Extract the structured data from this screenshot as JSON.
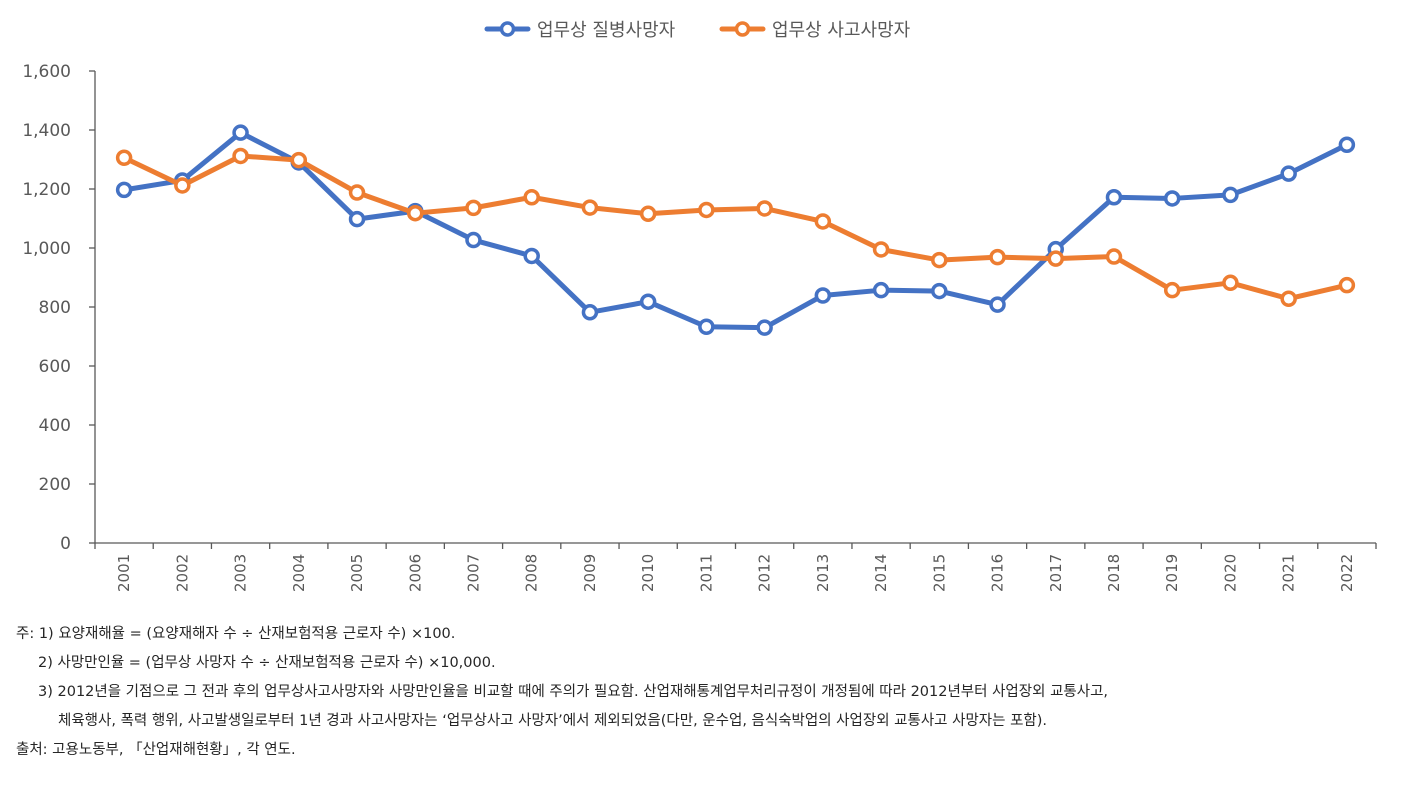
{
  "chart_data": {
    "type": "line",
    "x": [
      "2001",
      "2002",
      "2003",
      "2004",
      "2005",
      "2006",
      "2007",
      "2008",
      "2009",
      "2010",
      "2011",
      "2012",
      "2013",
      "2014",
      "2015",
      "2016",
      "2017",
      "2018",
      "2019",
      "2020",
      "2021",
      "2022"
    ],
    "ylim": [
      0,
      1600
    ],
    "yticks": [
      0,
      200,
      400,
      600,
      800,
      1000,
      1200,
      1400,
      1600
    ],
    "ytick_labels": [
      "0",
      "200",
      "400",
      "600",
      "800",
      "1,000",
      "1,200",
      "1,400",
      "1,600"
    ],
    "grid": false,
    "legend_position": "top-center",
    "series": [
      {
        "name": "업무상 질병사망자",
        "color": "#4472C4",
        "values": [
          1197,
          1229,
          1391,
          1290,
          1098,
          1125,
          1027,
          973,
          782,
          818,
          733,
          730,
          839,
          857,
          854,
          808,
          996,
          1172,
          1168,
          1180,
          1252,
          1350
        ]
      },
      {
        "name": "업무상 사고사망자",
        "color": "#ED7D31",
        "values": [
          1306,
          1212,
          1312,
          1298,
          1188,
          1118,
          1136,
          1172,
          1137,
          1116,
          1129,
          1134,
          1090,
          995,
          959,
          969,
          964,
          971,
          857,
          882,
          828,
          874
        ]
      }
    ]
  },
  "notes": {
    "line1": "주: 1) 요양재해율 = (요양재해자 수 ÷ 산재보험적용 근로자 수) ×100.",
    "line2": "2) 사망만인율 = (업무상 사망자 수 ÷ 산재보험적용 근로자 수) ×10,000.",
    "line3": "3) 2012년을 기점으로 그 전과 후의 업무상사고사망자와 사망만인율을 비교할 때에 주의가 필요함. 산업재해통계업무처리규정이 개정됨에 따라 2012년부터 사업장외 교통사고,",
    "line4": "체육행사, 폭력 행위, 사고발생일로부터 1년 경과 사고사망자는 ‘업무상사고 사망자’에서 제외되었음(다만, 운수업, 음식숙박업의 사업장외 교통사고 사망자는 포함).",
    "source": "출처: 고용노동부, 「산업재해현황」, 각 연도."
  }
}
